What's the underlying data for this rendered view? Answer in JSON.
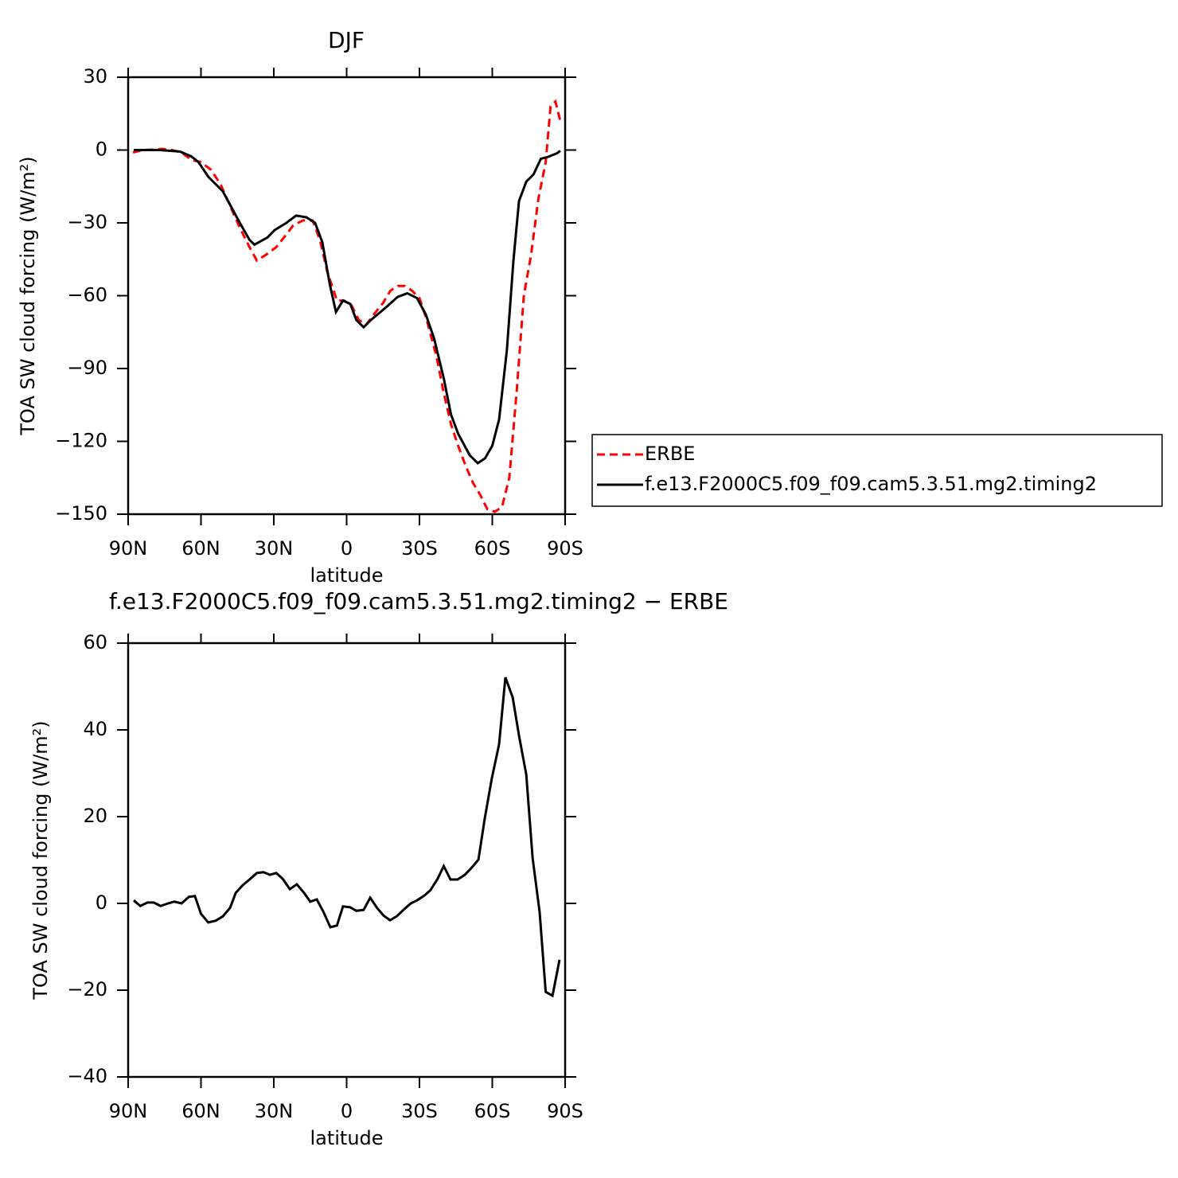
{
  "chart_data": [
    {
      "type": "line",
      "title": "DJF",
      "xlabel": "latitude",
      "ylabel": "TOA SW cloud forcing (W/m²)",
      "xlim": [
        90,
        -90
      ],
      "ylim": [
        30,
        -150
      ],
      "xticks": [
        {
          "value": 90,
          "label": "90N"
        },
        {
          "value": 60,
          "label": "60N"
        },
        {
          "value": 30,
          "label": "30N"
        },
        0,
        {
          "value": -30,
          "label": "30S"
        },
        {
          "value": -60,
          "label": "60S"
        },
        {
          "value": -90,
          "label": "90S"
        }
      ],
      "yticks": [
        30,
        0,
        {
          "value": -30,
          "label": "−30"
        },
        {
          "value": -60,
          "label": "−60"
        },
        {
          "value": -90,
          "label": "−90"
        },
        {
          "value": -120,
          "label": "−120"
        },
        {
          "value": -150,
          "label": "−150"
        }
      ],
      "series": [
        {
          "name": "ERBE",
          "color": "#ff0000",
          "dash": true,
          "x": [
            88,
            84,
            80,
            76,
            72,
            68,
            64,
            60,
            56,
            52,
            48,
            44,
            40,
            37,
            33,
            29,
            25,
            22,
            18,
            14,
            11,
            8,
            4,
            1,
            -2,
            -5,
            -8,
            -11,
            -15,
            -18,
            -21,
            -24,
            -27,
            -30,
            -33,
            -37,
            -40,
            -43,
            -46,
            -49,
            -52,
            -55,
            -58,
            -61,
            -64,
            -67,
            -70,
            -73,
            -76,
            -79,
            -82,
            -84,
            -86,
            -88
          ],
          "values": [
            -1,
            0,
            0.2,
            0.5,
            0,
            -1,
            -4,
            -5,
            -8,
            -14,
            -23,
            -32,
            -40,
            -45.5,
            -43,
            -40,
            -35,
            -31,
            -29,
            -29,
            -37,
            -50,
            -62,
            -62,
            -64,
            -70,
            -72,
            -68,
            -63,
            -58,
            -56,
            -56,
            -58,
            -61,
            -70,
            -85,
            -100,
            -113,
            -122,
            -130,
            -137,
            -142,
            -148,
            -149,
            -147,
            -135,
            -100,
            -60,
            -43,
            -20,
            -5,
            18,
            20,
            12
          ]
        },
        {
          "name": "f.e13.F2000C5.f09_f09.cam5.3.51.mg2.timing2",
          "color": "#000000",
          "dash": false,
          "x": [
            87.7,
            77,
            68.7,
            64,
            61,
            57,
            51,
            46.7,
            44,
            40,
            38,
            32.6,
            29.7,
            24.8,
            20.8,
            16.6,
            13,
            10,
            7,
            4.4,
            1.5,
            -1.5,
            -4,
            -7,
            -10,
            -16,
            -21,
            -25,
            -29,
            -32.6,
            -36,
            -40,
            -43,
            -46,
            -50.7,
            -54,
            -57,
            -60,
            -62.8,
            -66,
            -68.7,
            -71,
            -74,
            -77,
            -80,
            -83,
            -86.7,
            -88
          ],
          "values": [
            0,
            0,
            -0.6,
            -2.6,
            -5,
            -11,
            -17,
            -25,
            -30,
            -37,
            -39,
            -36,
            -33,
            -30,
            -27,
            -27.7,
            -30,
            -38,
            -55,
            -66.7,
            -62,
            -63.4,
            -70,
            -73,
            -70,
            -65,
            -60.5,
            -59,
            -61,
            -67.7,
            -77.5,
            -94,
            -109,
            -117,
            -125.7,
            -129,
            -127,
            -121.8,
            -111,
            -82.5,
            -45.6,
            -21,
            -13,
            -10,
            -3.6,
            -2.8,
            -1.3,
            -0.3
          ]
        }
      ]
    },
    {
      "type": "line",
      "title": "f.e13.F2000C5.f09_f09.cam5.3.51.mg2.timing2 − ERBE",
      "xlabel": "latitude",
      "ylabel": "TOA SW cloud forcing (W/m²)",
      "xlim": [
        90,
        -90
      ],
      "ylim": [
        60,
        -40
      ],
      "xticks": [
        {
          "value": 90,
          "label": "90N"
        },
        {
          "value": 60,
          "label": "60N"
        },
        {
          "value": 30,
          "label": "30N"
        },
        0,
        {
          "value": -30,
          "label": "30S"
        },
        {
          "value": -60,
          "label": "60S"
        },
        {
          "value": -90,
          "label": "90S"
        }
      ],
      "yticks": [
        60,
        40,
        20,
        0,
        {
          "value": -20,
          "label": "−20"
        },
        {
          "value": -40,
          "label": "−40"
        }
      ],
      "series": [
        {
          "color": "#000000",
          "dash": false,
          "x": [
            87.7,
            85,
            82,
            79.5,
            76.6,
            73.6,
            71,
            68,
            65,
            62.5,
            60,
            57,
            54,
            51,
            48,
            45.7,
            42.8,
            40,
            37,
            34.3,
            31.6,
            29,
            26.4,
            23.4,
            20.5,
            17.5,
            15,
            12.3,
            9.7,
            6.7,
            4,
            1.5,
            -1.5,
            -4,
            -7,
            -9.7,
            -12.6,
            -15.2,
            -17.9,
            -20.8,
            -23.4,
            -26.4,
            -29,
            -32,
            -34.6,
            -37.5,
            -40,
            -42.8,
            -45.7,
            -48.7,
            -51.3,
            -54.3,
            -56.9,
            -59.8,
            -62.8,
            -65.4,
            -68.4,
            -71,
            -74,
            -76.6,
            -79.5,
            -82,
            -84.8,
            -87.7
          ],
          "values": [
            0.7,
            -0.6,
            0.2,
            0.2,
            -0.6,
            0,
            0.4,
            0,
            1.5,
            1.7,
            -2.4,
            -4.4,
            -4,
            -3,
            -1,
            2.4,
            4.2,
            5.5,
            7,
            7.2,
            6.6,
            7,
            5.7,
            3.3,
            4.4,
            2.4,
            0.4,
            0.9,
            -1.8,
            -5.5,
            -5.1,
            -0.7,
            -0.9,
            -1.7,
            -1.5,
            1.3,
            -1.1,
            -2.8,
            -3.9,
            -2.9,
            -1.5,
            0,
            0.7,
            1.8,
            3.1,
            5.7,
            8.6,
            5.5,
            5.5,
            6.6,
            8.1,
            10.1,
            19.6,
            28.8,
            36.7,
            52.1,
            47.5,
            38.7,
            29.7,
            10.5,
            -2,
            -20.4,
            -21.3,
            -13
          ]
        }
      ]
    }
  ]
}
